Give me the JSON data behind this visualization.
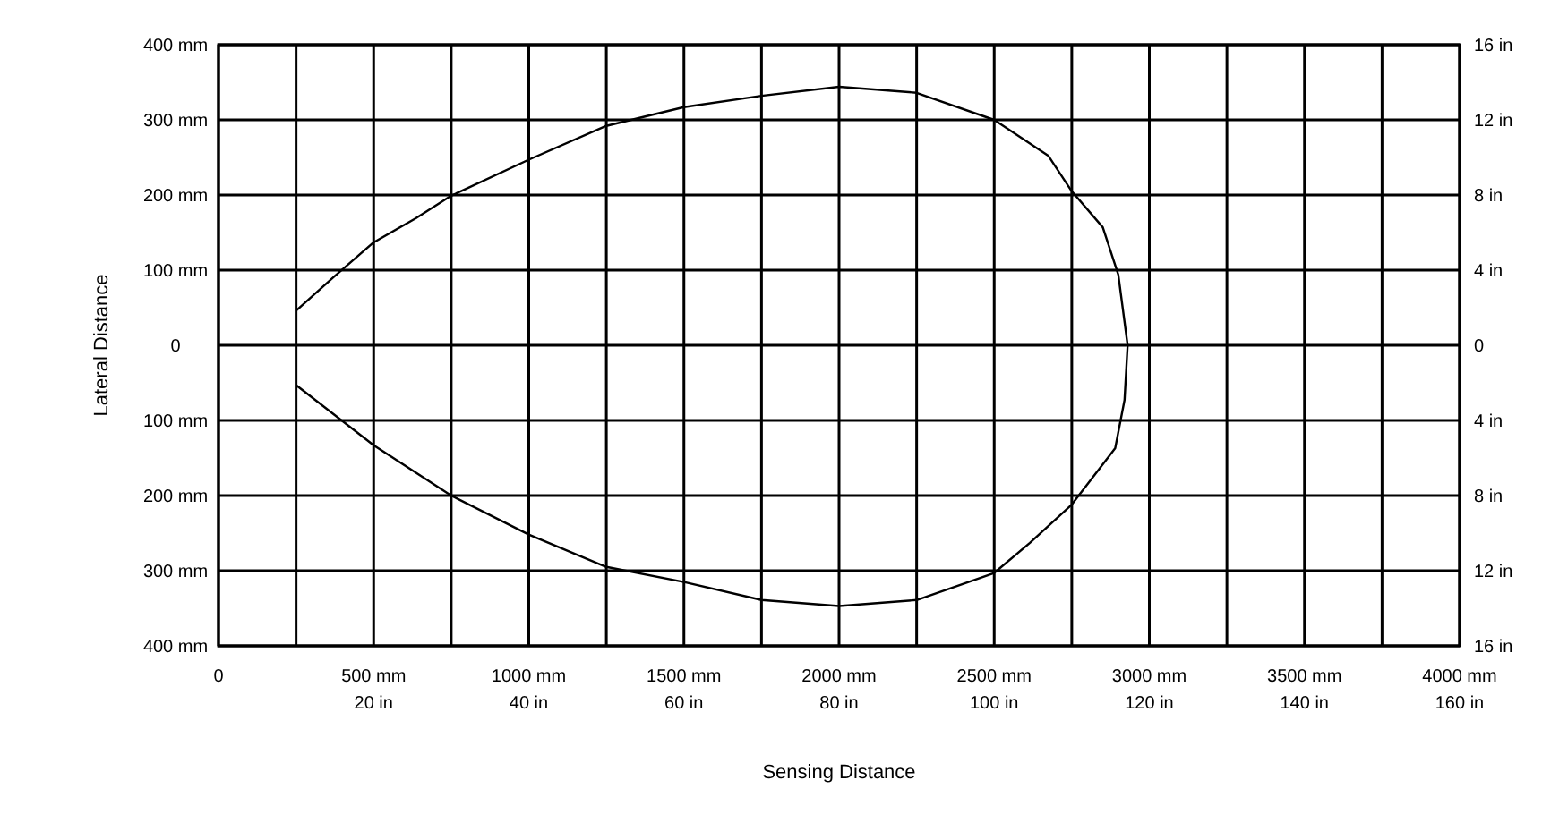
{
  "chart_data": {
    "type": "line",
    "xlabel": "Sensing Distance",
    "ylabel": "Lateral Distance",
    "xlim": [
      0,
      4000
    ],
    "xticks": [
      0,
      {
        "value": 250,
        "label": null
      },
      {
        "value": 500,
        "label": "500 mm"
      },
      {
        "value": 750,
        "label": null
      },
      {
        "value": 1000,
        "label": "1000 mm"
      },
      {
        "value": 1250,
        "label": null
      },
      {
        "value": 1500,
        "label": "1500 mm"
      },
      {
        "value": 1750,
        "label": null
      },
      {
        "value": 2000,
        "label": "2000 mm"
      },
      {
        "value": 2250,
        "label": null
      },
      {
        "value": 2500,
        "label": "2500 mm"
      },
      {
        "value": 2750,
        "label": null
      },
      {
        "value": 3000,
        "label": "3000 mm"
      },
      {
        "value": 3250,
        "label": null
      },
      {
        "value": 3500,
        "label": "3500 mm"
      },
      {
        "value": 3750,
        "label": null
      },
      {
        "value": 4000,
        "label": "4000 mm"
      }
    ],
    "x2lim": [
      0,
      160
    ],
    "x2ticks": [
      {
        "value": 20,
        "label": "20 in"
      },
      {
        "value": 40,
        "label": "40 in"
      },
      {
        "value": 60,
        "label": "60 in"
      },
      {
        "value": 80,
        "label": "80 in"
      },
      {
        "value": 100,
        "label": "100 in"
      },
      {
        "value": 120,
        "label": "120 in"
      },
      {
        "value": 140,
        "label": "140 in"
      },
      {
        "value": 160,
        "label": "160 in"
      }
    ],
    "ylim": [
      -400,
      400
    ],
    "yticks": [
      {
        "value": -400,
        "label": "400 mm"
      },
      {
        "value": -300,
        "label": "300 mm"
      },
      {
        "value": -200,
        "label": "200 mm"
      },
      {
        "value": -100,
        "label": "100 mm"
      },
      0,
      {
        "value": 100,
        "label": "100 mm"
      },
      {
        "value": 200,
        "label": "200 mm"
      },
      {
        "value": 300,
        "label": "300 mm"
      },
      {
        "value": 400,
        "label": "400 mm"
      }
    ],
    "y2lim": [
      -16,
      16
    ],
    "y2ticks": [
      {
        "value": -16,
        "label": "16 in"
      },
      {
        "value": -12,
        "label": "12 in"
      },
      {
        "value": -8,
        "label": "8 in"
      },
      {
        "value": -4,
        "label": "4 in"
      },
      0,
      {
        "value": 4,
        "label": "4 in"
      },
      {
        "value": 8,
        "label": "8 in"
      },
      {
        "value": 12,
        "label": "12 in"
      },
      {
        "value": 16,
        "label": "16 in"
      }
    ],
    "grid": true,
    "series": [
      {
        "color": "#000000",
        "x": [
          250,
          369,
          500,
          636,
          750,
          1000,
          1250,
          1500,
          1750,
          2000,
          2250,
          2500,
          2675,
          2750,
          2850,
          2900,
          2930,
          2920,
          2890,
          2750,
          2615,
          2500,
          2250,
          2000,
          1750,
          1500,
          1250,
          1000,
          750,
          500,
          250
        ],
        "values": [
          46,
          90,
          137,
          169,
          199,
          247,
          292,
          317,
          332,
          344,
          336,
          300,
          252,
          205,
          157,
          94,
          0,
          -73,
          -137,
          -212,
          -263,
          -303,
          -339,
          -347,
          -339,
          -315,
          -295,
          -252,
          -200,
          -133,
          -53
        ]
      }
    ]
  }
}
